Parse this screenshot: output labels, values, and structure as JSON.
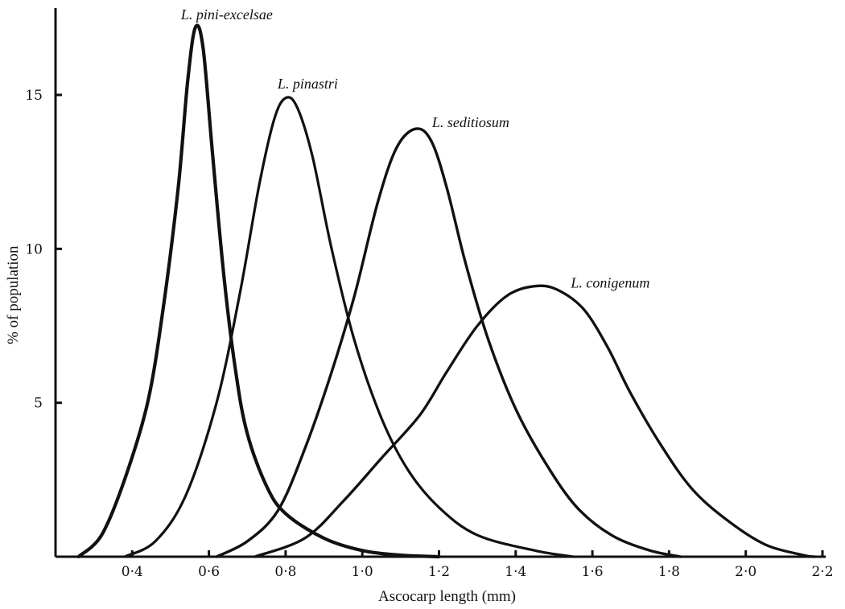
{
  "chart_data": {
    "type": "line",
    "xlabel": "Ascocarp length (mm)",
    "ylabel": "% of population",
    "xlim": [
      0.2,
      2.2
    ],
    "ylim": [
      0,
      17.5
    ],
    "x_ticks": [
      {
        "value": 0.4,
        "label": "0·4"
      },
      {
        "value": 0.6,
        "label": "0·6"
      },
      {
        "value": 0.8,
        "label": "0·8"
      },
      {
        "value": 1.0,
        "label": "1·0"
      },
      {
        "value": 1.2,
        "label": "1·2"
      },
      {
        "value": 1.4,
        "label": "1·4"
      },
      {
        "value": 1.6,
        "label": "1·6"
      },
      {
        "value": 1.8,
        "label": "1·8"
      },
      {
        "value": 2.0,
        "label": "2·0"
      },
      {
        "value": 2.2,
        "label": "2·2"
      }
    ],
    "y_ticks": [
      {
        "value": 5,
        "label": "5"
      },
      {
        "value": 10,
        "label": "10"
      },
      {
        "value": 15,
        "label": "15"
      }
    ],
    "grid": false,
    "legend": "none",
    "series": [
      {
        "name": "L. pini-excelsae",
        "points": [
          [
            0.26,
            0
          ],
          [
            0.32,
            0.7
          ],
          [
            0.38,
            2.5
          ],
          [
            0.44,
            5.0
          ],
          [
            0.48,
            8.0
          ],
          [
            0.52,
            12.0
          ],
          [
            0.545,
            15.5
          ],
          [
            0.565,
            17.2
          ],
          [
            0.585,
            16.5
          ],
          [
            0.61,
            13.0
          ],
          [
            0.64,
            9.0
          ],
          [
            0.67,
            6.0
          ],
          [
            0.7,
            4.0
          ],
          [
            0.75,
            2.3
          ],
          [
            0.8,
            1.4
          ],
          [
            0.9,
            0.6
          ],
          [
            1.0,
            0.2
          ],
          [
            1.1,
            0.05
          ],
          [
            1.2,
            0
          ]
        ]
      },
      {
        "name": "L. pinastri",
        "points": [
          [
            0.38,
            0
          ],
          [
            0.46,
            0.5
          ],
          [
            0.54,
            2.0
          ],
          [
            0.62,
            5.0
          ],
          [
            0.68,
            8.5
          ],
          [
            0.73,
            12.0
          ],
          [
            0.77,
            14.2
          ],
          [
            0.8,
            14.9
          ],
          [
            0.83,
            14.6
          ],
          [
            0.87,
            13.0
          ],
          [
            0.92,
            10.0
          ],
          [
            0.98,
            7.0
          ],
          [
            1.05,
            4.5
          ],
          [
            1.12,
            2.8
          ],
          [
            1.2,
            1.6
          ],
          [
            1.3,
            0.7
          ],
          [
            1.45,
            0.2
          ],
          [
            1.55,
            0
          ]
        ]
      },
      {
        "name": "L. seditiosum",
        "points": [
          [
            0.62,
            0
          ],
          [
            0.7,
            0.5
          ],
          [
            0.78,
            1.5
          ],
          [
            0.85,
            3.5
          ],
          [
            0.92,
            6.0
          ],
          [
            0.98,
            8.5
          ],
          [
            1.04,
            11.5
          ],
          [
            1.09,
            13.3
          ],
          [
            1.14,
            13.9
          ],
          [
            1.18,
            13.5
          ],
          [
            1.22,
            12.0
          ],
          [
            1.27,
            9.5
          ],
          [
            1.33,
            7.0
          ],
          [
            1.4,
            4.8
          ],
          [
            1.48,
            3.0
          ],
          [
            1.56,
            1.6
          ],
          [
            1.65,
            0.7
          ],
          [
            1.75,
            0.2
          ],
          [
            1.83,
            0
          ]
        ]
      },
      {
        "name": "L. conigenum",
        "points": [
          [
            0.72,
            0
          ],
          [
            0.85,
            0.6
          ],
          [
            0.95,
            1.8
          ],
          [
            1.05,
            3.2
          ],
          [
            1.15,
            4.6
          ],
          [
            1.22,
            6.0
          ],
          [
            1.3,
            7.5
          ],
          [
            1.38,
            8.5
          ],
          [
            1.46,
            8.8
          ],
          [
            1.52,
            8.6
          ],
          [
            1.58,
            8.0
          ],
          [
            1.64,
            6.8
          ],
          [
            1.7,
            5.3
          ],
          [
            1.78,
            3.6
          ],
          [
            1.86,
            2.2
          ],
          [
            1.95,
            1.2
          ],
          [
            2.05,
            0.4
          ],
          [
            2.15,
            0.05
          ],
          [
            2.18,
            0
          ]
        ]
      }
    ]
  }
}
